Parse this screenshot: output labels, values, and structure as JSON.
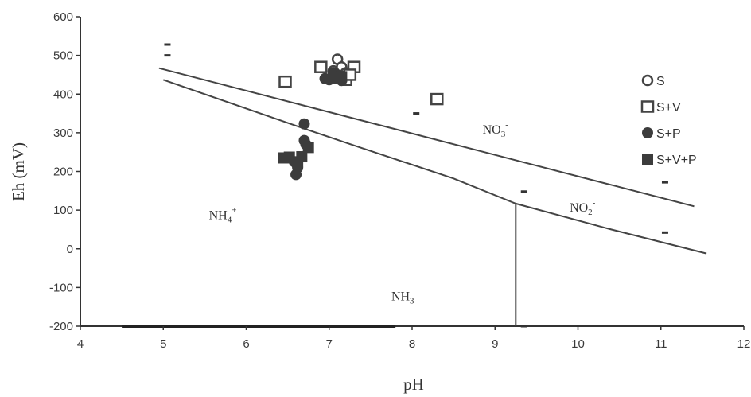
{
  "chart_data": {
    "type": "scatter",
    "xlabel": "pH",
    "ylabel": "Eh (mV)",
    "xlim": [
      4,
      12
    ],
    "ylim": [
      -200,
      600
    ],
    "xticks": [
      "4",
      "5",
      "6",
      "7",
      "8",
      "9",
      "10",
      "11",
      "12"
    ],
    "yticks": [
      "600",
      "500",
      "400",
      "300",
      "200",
      "100",
      "0",
      "-100",
      "-200"
    ],
    "legend_position": "top-right",
    "series": [
      {
        "name": "S",
        "marker": "open-circle",
        "points": [
          [
            7.1,
            490
          ],
          [
            7.15,
            470
          ],
          [
            7.2,
            455
          ],
          [
            7.05,
            460
          ]
        ]
      },
      {
        "name": "S+V",
        "marker": "open-square",
        "points": [
          [
            6.47,
            432
          ],
          [
            6.9,
            470
          ],
          [
            7.3,
            470
          ],
          [
            8.3,
            387
          ],
          [
            7.2,
            437
          ],
          [
            7.1,
            445
          ],
          [
            7.25,
            450
          ]
        ]
      },
      {
        "name": "S+P",
        "marker": "filled-circle",
        "points": [
          [
            6.7,
            323
          ],
          [
            6.6,
            192
          ],
          [
            6.62,
            210
          ],
          [
            7.0,
            437
          ],
          [
            6.95,
            440
          ],
          [
            7.15,
            435
          ],
          [
            7.1,
            450
          ],
          [
            7.05,
            455
          ],
          [
            6.72,
            270
          ],
          [
            6.7,
            280
          ],
          [
            6.58,
            225
          ]
        ]
      },
      {
        "name": "S+V+P",
        "marker": "filled-square",
        "points": [
          [
            6.45,
            235
          ],
          [
            6.52,
            237
          ],
          [
            6.67,
            238
          ],
          [
            6.75,
            262
          ],
          [
            6.62,
            225
          ],
          [
            7.05,
            440
          ],
          [
            7.15,
            445
          ]
        ]
      }
    ],
    "stray_marks": [
      [
        5.05,
        528
      ],
      [
        5.05,
        500
      ],
      [
        8.05,
        350
      ],
      [
        9.35,
        148
      ],
      [
        11.05,
        172
      ],
      [
        11.05,
        42
      ],
      [
        9.35,
        -200
      ]
    ],
    "boundary_lines": [
      {
        "between": "NO3- / NO2-",
        "points": [
          [
            4.95,
            467
          ],
          [
            11.4,
            110
          ]
        ]
      },
      {
        "between": "NO2- / NH4+",
        "points": [
          [
            5.0,
            437
          ],
          [
            6.6,
            318
          ],
          [
            7.4,
            260
          ],
          [
            8.5,
            182
          ],
          [
            9.25,
            117
          ],
          [
            10.4,
            50
          ],
          [
            11.55,
            -12
          ]
        ]
      },
      {
        "between": "NH4+ / NH3",
        "points": [
          [
            9.25,
            117
          ],
          [
            9.25,
            -200
          ]
        ]
      }
    ],
    "regions": [
      {
        "key": "nh4",
        "base": "NH",
        "sub": "4",
        "sup": "+",
        "x": 5.55,
        "y": 77
      },
      {
        "key": "no3",
        "base": "NO",
        "sub": "3",
        "sup": "-",
        "x": 8.85,
        "y": 298
      },
      {
        "key": "no2",
        "base": "NO",
        "sub": "2",
        "sup": "-",
        "x": 9.9,
        "y": 96
      },
      {
        "key": "nh3",
        "base": "NH",
        "sub": "3",
        "sup": "",
        "x": 7.75,
        "y": -133
      }
    ]
  }
}
